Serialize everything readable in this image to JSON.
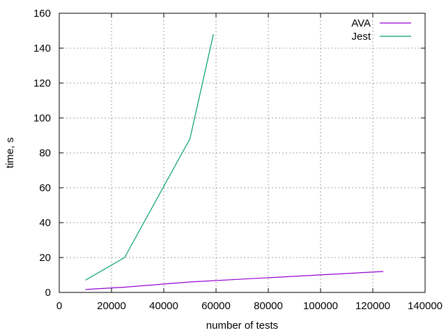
{
  "chart_data": {
    "type": "line",
    "title": "",
    "xlabel": "number of tests",
    "ylabel": "time, s",
    "xlim": [
      0,
      140000
    ],
    "ylim": [
      0,
      160
    ],
    "xticks": [
      0,
      20000,
      40000,
      60000,
      80000,
      100000,
      120000,
      140000
    ],
    "yticks": [
      0,
      20,
      40,
      60,
      80,
      100,
      120,
      140,
      160
    ],
    "grid": true,
    "legend_position": "top-right",
    "series": [
      {
        "name": "AVA",
        "color": "#9400d3",
        "x": [
          10000,
          25000,
          50000,
          124000
        ],
        "y": [
          1.7,
          3,
          6,
          12
        ]
      },
      {
        "name": "Jest",
        "color": "#009e73",
        "x": [
          10000,
          25000,
          50000,
          59000
        ],
        "y": [
          7,
          20,
          88,
          148
        ]
      }
    ]
  }
}
